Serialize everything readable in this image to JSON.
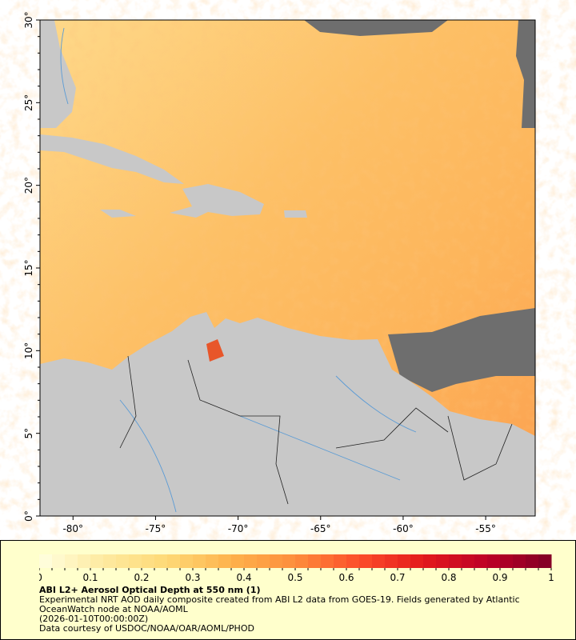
{
  "map": {
    "lon_ticks": [
      "-80°",
      "-75°",
      "-70°",
      "-65°",
      "-60°",
      "-55°"
    ],
    "lat_ticks": [
      "0°",
      "5°",
      "10°",
      "15°",
      "20°",
      "25°",
      "30°"
    ],
    "colors": {
      "land": "#c8c8c8",
      "no_data": "#6e6e6e",
      "rivers": "#5b9bd5",
      "borders": "#222222"
    }
  },
  "legend": {
    "colorbar_ticks": [
      "0",
      "0.1",
      "0.2",
      "0.3",
      "0.4",
      "0.5",
      "0.6",
      "0.7",
      "0.8",
      "0.9",
      "1"
    ],
    "colorbar_range": [
      0,
      1
    ],
    "colormap": [
      "#ffffe0",
      "#feeaa0",
      "#fed976",
      "#feb24c",
      "#fd8d3c",
      "#fc4e2a",
      "#e31a1c",
      "#bd0026",
      "#800026"
    ],
    "title": "ABI L2+ Aerosol Optical Depth at 550 nm (1)",
    "line1": "Experimental NRT AOD daily composite created from ABI L2 data from GOES-19. Fields generated by Atlantic",
    "line2": "OceanWatch node at NOAA/AOML",
    "time": "(2026-01-10T00:00:00Z)",
    "credit": "Data courtesy of USDOC/NOAA/OAR/AOML/PHOD"
  }
}
